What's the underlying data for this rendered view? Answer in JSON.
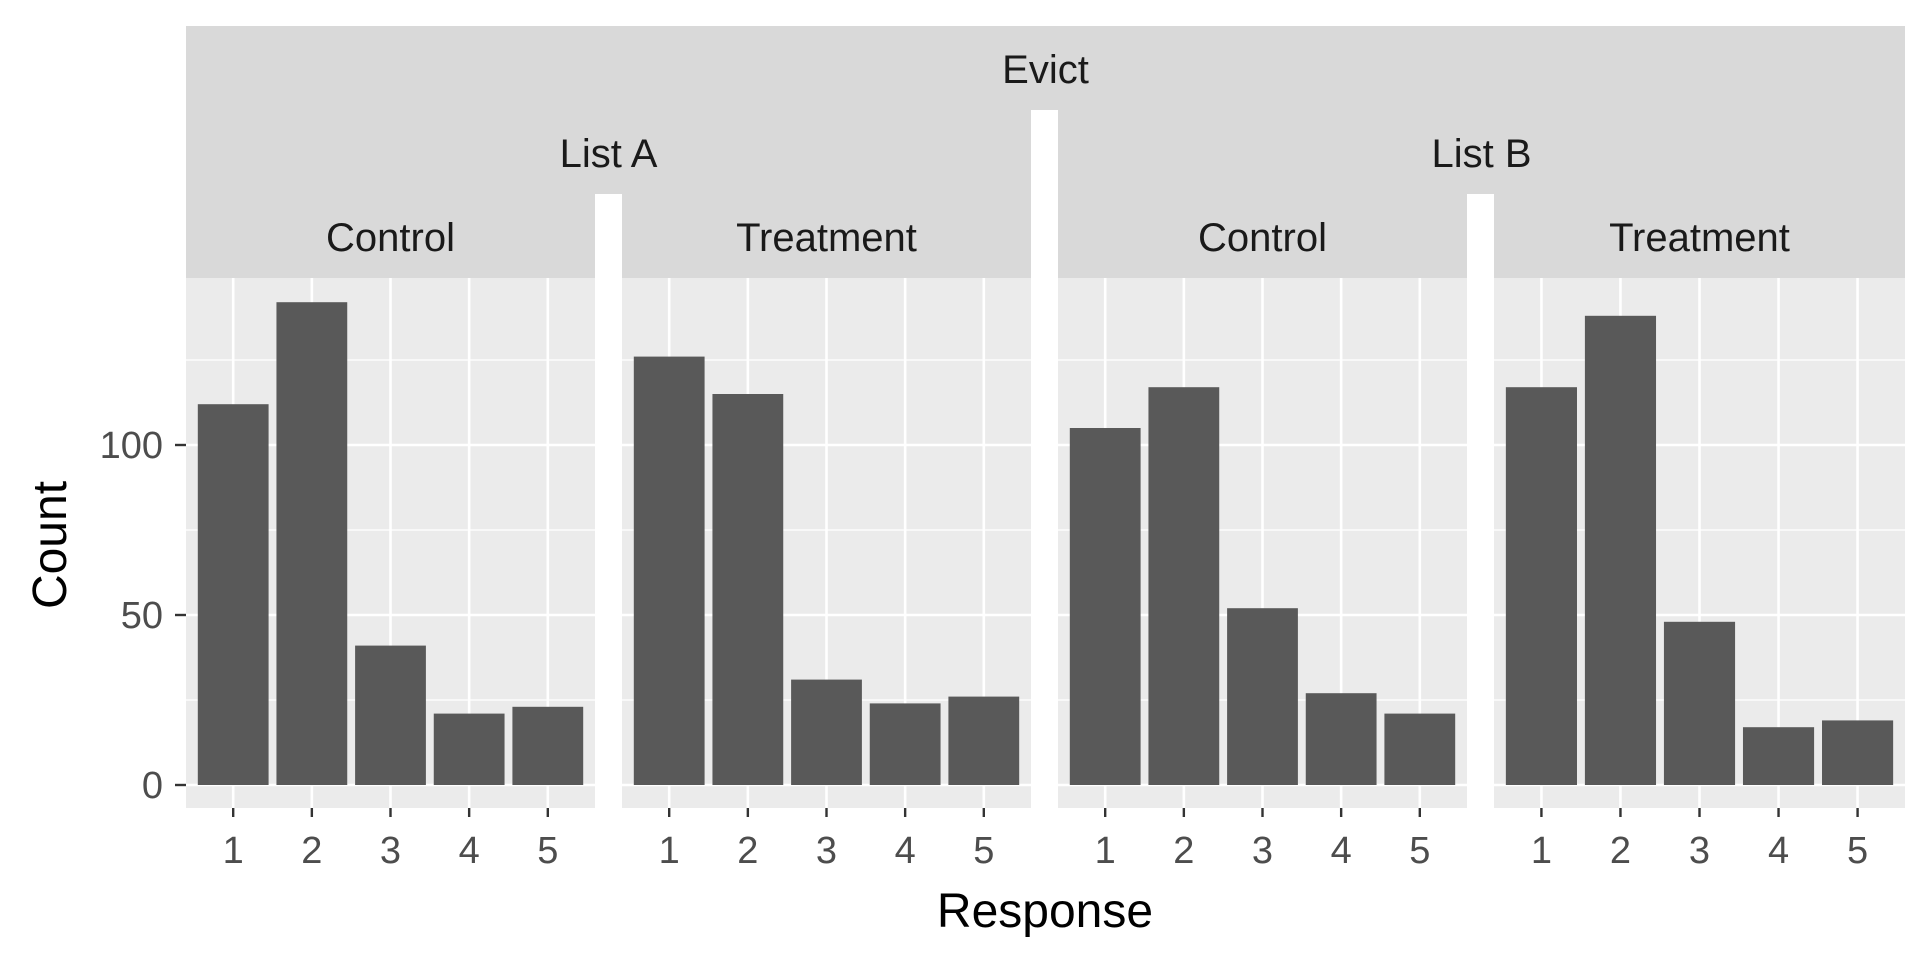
{
  "colors": {
    "panel_background": "#ebebeb",
    "strip_background": "#d9d9d9",
    "bar_fill": "#595959",
    "grid": "#ffffff",
    "tick_text": "#4d4d4d",
    "strip_text": "#1a1a1a"
  },
  "chart_data": {
    "type": "bar",
    "facet_top": "Evict",
    "lists": [
      "List A",
      "List B"
    ],
    "conditions": [
      "Control",
      "Treatment"
    ],
    "xlabel": "Response",
    "ylabel": "Count",
    "categories": [
      "1",
      "2",
      "3",
      "4",
      "5"
    ],
    "ylim": [
      0,
      145
    ],
    "yticks": [
      0,
      50,
      100
    ],
    "grid": true,
    "panels": [
      {
        "list": "List A",
        "condition": "Control",
        "values": [
          112,
          142,
          41,
          21,
          23
        ]
      },
      {
        "list": "List A",
        "condition": "Treatment",
        "values": [
          126,
          115,
          31,
          24,
          26
        ]
      },
      {
        "list": "List B",
        "condition": "Control",
        "values": [
          105,
          117,
          52,
          27,
          21
        ]
      },
      {
        "list": "List B",
        "condition": "Treatment",
        "values": [
          117,
          138,
          48,
          17,
          19
        ]
      }
    ]
  }
}
